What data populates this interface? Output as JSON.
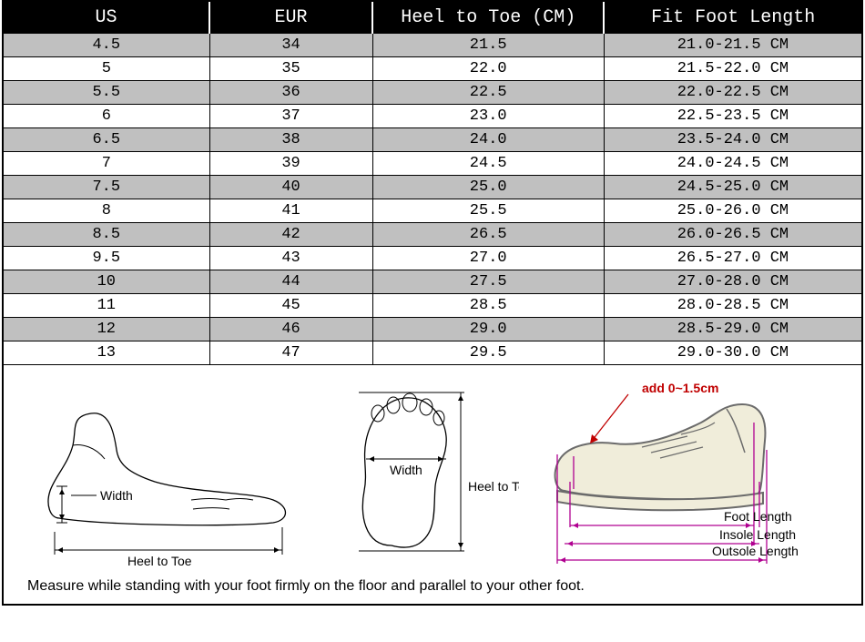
{
  "table": {
    "columns": [
      "US",
      "EUR",
      "Heel to Toe (CM)",
      "Fit Foot Length"
    ],
    "col_widths_pct": [
      24,
      19,
      27,
      30
    ],
    "header_bg": "#000000",
    "header_fg": "#ffffff",
    "header_fontsize": 20,
    "cell_fontsize": 17,
    "row_bg_even": "#c0c0c0",
    "row_bg_odd": "#ffffff",
    "border_color": "#000000",
    "rows": [
      [
        "4.5",
        "34",
        "21.5",
        "21.0-21.5 CM"
      ],
      [
        "5",
        "35",
        "22.0",
        "21.5-22.0 CM"
      ],
      [
        "5.5",
        "36",
        "22.5",
        "22.0-22.5 CM"
      ],
      [
        "6",
        "37",
        "23.0",
        "22.5-23.5 CM"
      ],
      [
        "6.5",
        "38",
        "24.0",
        "23.5-24.0 CM"
      ],
      [
        "7",
        "39",
        "24.5",
        "24.0-24.5 CM"
      ],
      [
        "7.5",
        "40",
        "25.0",
        "24.5-25.0 CM"
      ],
      [
        "8",
        "41",
        "25.5",
        "25.0-26.0 CM"
      ],
      [
        "8.5",
        "42",
        "26.5",
        "26.0-26.5 CM"
      ],
      [
        "9.5",
        "43",
        "27.0",
        "26.5-27.0 CM"
      ],
      [
        "10",
        "44",
        "27.5",
        "27.0-28.0 CM"
      ],
      [
        "11",
        "45",
        "28.5",
        "28.0-28.5 CM"
      ],
      [
        "12",
        "46",
        "29.0",
        "28.5-29.0 CM"
      ],
      [
        "13",
        "47",
        "29.5",
        "29.0-30.0 CM"
      ]
    ]
  },
  "diagrams": {
    "side_foot": {
      "stroke": "#000000",
      "label_width": "Width",
      "label_htt": "Heel to Toe"
    },
    "footprint": {
      "stroke": "#000000",
      "label_width": "Width",
      "label_htt": "Heel to Toe"
    },
    "shoe": {
      "outline_stroke": "#6b6b6b",
      "fill": "#f0edda",
      "dim_stroke": "#b00090",
      "add_text": "add 0~1.5cm",
      "add_color": "#c00000",
      "label_foot": "Foot Length",
      "label_insole": "Insole Length",
      "label_outsole": "Outsole Length"
    }
  },
  "note_text": "Measure while standing with your foot firmly on the floor and parallel to your other foot.",
  "note_fontsize": 16
}
